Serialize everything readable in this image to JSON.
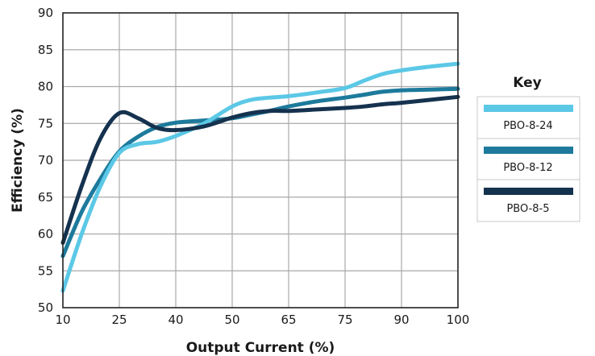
{
  "chart_data": {
    "type": "line",
    "title": "",
    "xlabel": "Output Current (%)",
    "ylabel": "Efficiency (%)",
    "x_ticks": [
      "10",
      "25",
      "40",
      "50",
      "65",
      "75",
      "90",
      "100"
    ],
    "y_ticks": [
      "50",
      "55",
      "60",
      "65",
      "70",
      "75",
      "80",
      "85",
      "90"
    ],
    "ylim": [
      50,
      90
    ],
    "grid": true,
    "legend": {
      "title": "Key",
      "position": "right"
    },
    "series": [
      {
        "name": "PBO-8-24",
        "color": "#5bc8e6",
        "points": [
          [
            10,
            52.3
          ],
          [
            15,
            60
          ],
          [
            20,
            66.5
          ],
          [
            25,
            71
          ],
          [
            30,
            72.2
          ],
          [
            35,
            72.5
          ],
          [
            40,
            73.3
          ],
          [
            45,
            75
          ],
          [
            50,
            77.3
          ],
          [
            55,
            78.2
          ],
          [
            60,
            78.5
          ],
          [
            65,
            78.7
          ],
          [
            70,
            79.2
          ],
          [
            75,
            79.8
          ],
          [
            80,
            80.8
          ],
          [
            85,
            81.7
          ],
          [
            90,
            82.2
          ],
          [
            95,
            82.7
          ],
          [
            100,
            83.1
          ]
        ]
      },
      {
        "name": "PBO-8-12",
        "color": "#1d7a9c",
        "points": [
          [
            10,
            57
          ],
          [
            15,
            63
          ],
          [
            20,
            67.5
          ],
          [
            25,
            71.2
          ],
          [
            30,
            73.2
          ],
          [
            35,
            74.5
          ],
          [
            40,
            75.1
          ],
          [
            45,
            75.4
          ],
          [
            50,
            75.7
          ],
          [
            55,
            76.2
          ],
          [
            60,
            76.7
          ],
          [
            65,
            77.3
          ],
          [
            70,
            78
          ],
          [
            75,
            78.5
          ],
          [
            80,
            78.9
          ],
          [
            85,
            79.3
          ],
          [
            90,
            79.5
          ],
          [
            95,
            79.6
          ],
          [
            100,
            79.7
          ]
        ]
      },
      {
        "name": "PBO-8-5",
        "color": "#15324f",
        "points": [
          [
            10,
            58.8
          ],
          [
            15,
            66.5
          ],
          [
            20,
            73
          ],
          [
            25,
            76.4
          ],
          [
            30,
            75.7
          ],
          [
            35,
            74.4
          ],
          [
            40,
            74.1
          ],
          [
            45,
            74.6
          ],
          [
            50,
            75.8
          ],
          [
            55,
            76.4
          ],
          [
            60,
            76.7
          ],
          [
            65,
            76.7
          ],
          [
            70,
            76.9
          ],
          [
            75,
            77.1
          ],
          [
            80,
            77.3
          ],
          [
            85,
            77.6
          ],
          [
            90,
            77.8
          ],
          [
            95,
            78.2
          ],
          [
            100,
            78.6
          ]
        ]
      }
    ]
  }
}
